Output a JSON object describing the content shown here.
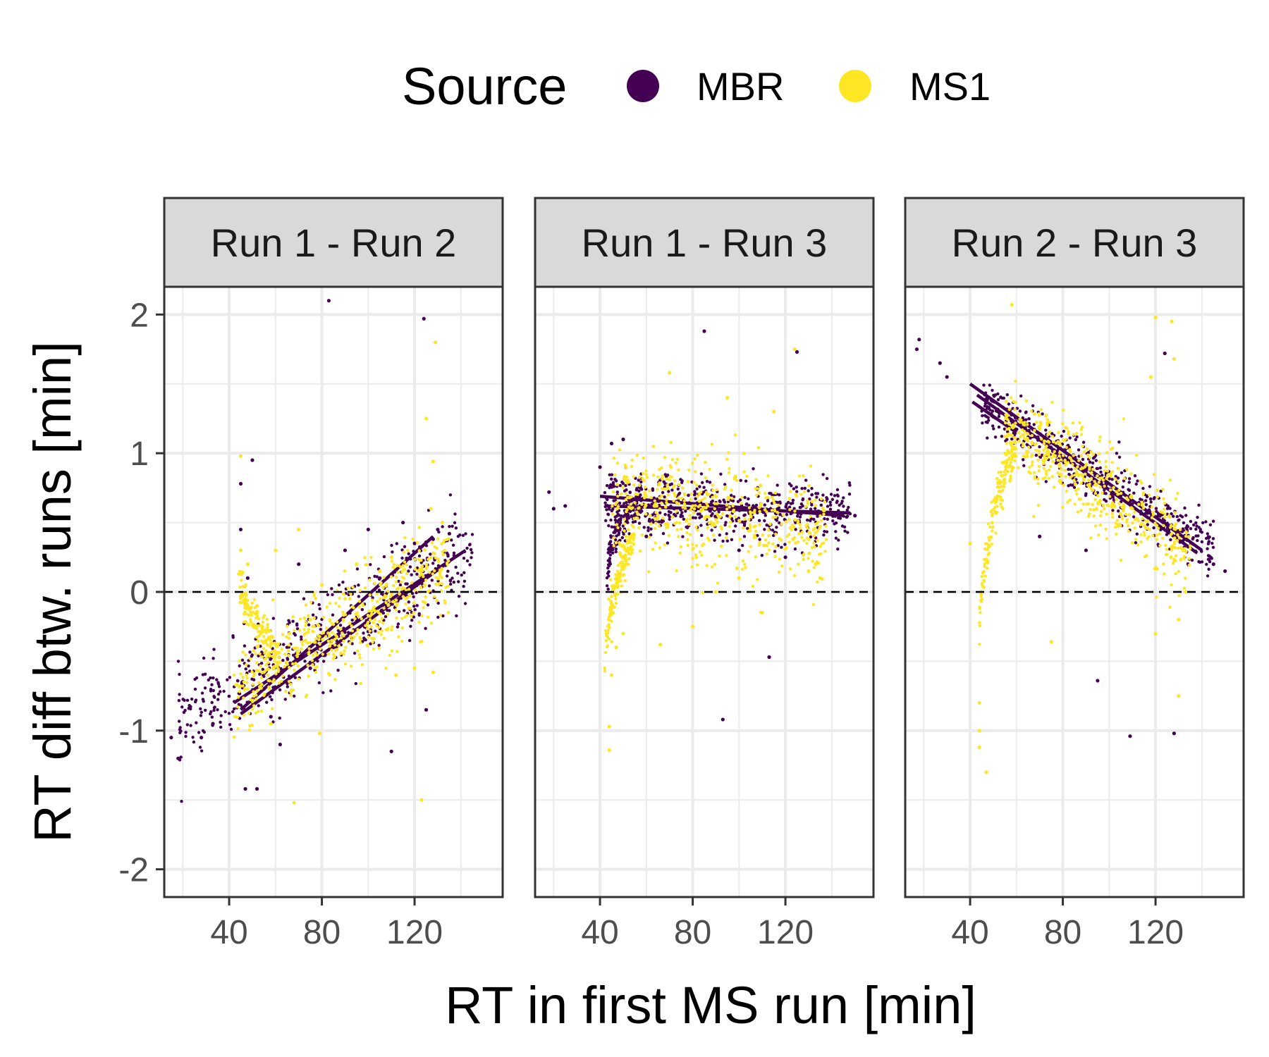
{
  "legend": {
    "title": "Source",
    "items": [
      {
        "label": "MBR",
        "color": "#440154"
      },
      {
        "label": "MS1",
        "color": "#FDE725"
      }
    ]
  },
  "axes": {
    "x_title": "RT in first MS run [min]",
    "y_title": "RT diff btw. runs [min]"
  },
  "chart_data": [
    {
      "type": "scatter",
      "panel": "Run 1 - Run 2",
      "xlim": [
        12,
        158
      ],
      "ylim": [
        -2.2,
        2.2
      ],
      "x_ticks": [
        40,
        80,
        120
      ],
      "x_tick_labels": [
        "40",
        "80",
        "120"
      ],
      "y_ticks": [
        -2,
        -1,
        0,
        1,
        2
      ],
      "y_tick_labels": [
        "-2",
        "-1",
        "0",
        "1",
        "2"
      ],
      "reference_line_y": 0,
      "grid": true,
      "series": [
        {
          "name": "MBR",
          "color": "#440154",
          "points": [
            [
              15,
              -1.05
            ],
            [
              18,
              -1.2
            ],
            [
              28,
              -1.05
            ],
            [
              33,
              -0.95
            ],
            [
              45,
              0.45
            ],
            [
              45,
              0.78
            ],
            [
              50,
              0.95
            ],
            [
              83,
              2.1
            ],
            [
              124,
              1.97
            ],
            [
              47,
              -1.42
            ],
            [
              52,
              -1.42
            ],
            [
              110,
              -1.15
            ],
            [
              125,
              -0.85
            ],
            [
              58,
              -0.9
            ],
            [
              62,
              -1.1
            ],
            [
              70,
              0.2
            ],
            [
              90,
              0.3
            ],
            [
              100,
              0.45
            ],
            [
              115,
              0.5
            ],
            [
              130,
              0.45
            ],
            [
              128,
              0.38
            ],
            [
              105,
              0.1
            ],
            [
              95,
              -0.2
            ],
            [
              85,
              -0.4
            ],
            [
              75,
              -0.55
            ],
            [
              65,
              -0.65
            ],
            [
              55,
              -0.7
            ],
            [
              48,
              0.1
            ],
            [
              120,
              0.35
            ],
            [
              135,
              0.42
            ]
          ],
          "fit_lines": [
            [
              [
                42,
                -0.8
              ],
              [
                142,
                0.3
              ]
            ],
            [
              [
                45,
                -0.88
              ],
              [
                135,
                0.22
              ]
            ],
            [
              [
                45,
                -0.85
              ],
              [
                128,
                0.4
              ]
            ]
          ],
          "band": {
            "x": [
              18,
              145
            ],
            "center_start": -0.95,
            "center_end": 0.32,
            "spread": 0.3
          }
        },
        {
          "name": "MS1",
          "color": "#FDE725",
          "points": [
            [
              45,
              0.98
            ],
            [
              129,
              1.8
            ],
            [
              125,
              1.25
            ],
            [
              128,
              0.94
            ],
            [
              68,
              -1.52
            ],
            [
              123,
              -1.5
            ],
            [
              45,
              0.3
            ],
            [
              48,
              0.2
            ],
            [
              52,
              -0.1
            ],
            [
              60,
              0.3
            ],
            [
              70,
              0.45
            ],
            [
              80,
              0.05
            ],
            [
              90,
              -0.05
            ],
            [
              110,
              0.25
            ],
            [
              127,
              0.6
            ],
            [
              132,
              0.5
            ],
            [
              112,
              -0.6
            ],
            [
              120,
              -0.55
            ],
            [
              128,
              -0.58
            ],
            [
              79,
              -1.02
            ],
            [
              58,
              -0.95
            ],
            [
              66,
              -0.3
            ],
            [
              75,
              -0.2
            ],
            [
              95,
              0.2
            ],
            [
              105,
              0.15
            ]
          ],
          "band": {
            "x": [
              42,
              135
            ],
            "center_start": -0.75,
            "center_end": 0.2,
            "spread": 0.3
          },
          "arm": {
            "x": [
              44,
              62
            ],
            "y_start": 0.2,
            "y_end": -0.5
          }
        }
      ]
    },
    {
      "type": "scatter",
      "panel": "Run 1 - Run 3",
      "xlim": [
        12,
        158
      ],
      "ylim": [
        -2.2,
        2.2
      ],
      "x_ticks": [
        40,
        80,
        120
      ],
      "x_tick_labels": [
        "40",
        "80",
        "120"
      ],
      "y_ticks": [
        -2,
        -1,
        0,
        1,
        2
      ],
      "y_tick_labels": [
        "-2",
        "-1",
        "0",
        "1",
        "2"
      ],
      "reference_line_y": 0,
      "grid": true,
      "series": [
        {
          "name": "MBR",
          "color": "#440154",
          "points": [
            [
              18,
              0.72
            ],
            [
              20,
              0.6
            ],
            [
              25,
              0.62
            ],
            [
              85,
              1.88
            ],
            [
              125,
              1.73
            ],
            [
              93,
              -0.92
            ],
            [
              113,
              -0.47
            ],
            [
              150,
              0.55
            ],
            [
              145,
              0.57
            ],
            [
              40,
              0.9
            ],
            [
              45,
              1.07
            ],
            [
              50,
              1.1
            ],
            [
              60,
              0.4
            ],
            [
              100,
              0.3
            ],
            [
              120,
              0.25
            ]
          ],
          "fit_lines": [
            [
              [
                40,
                0.69
              ],
              [
                145,
                0.55
              ]
            ],
            [
              [
                42,
                0.62
              ],
              [
                148,
                0.57
              ]
            ]
          ],
          "band": {
            "x": [
              42,
              148
            ],
            "center_start": 0.65,
            "center_end": 0.55,
            "spread": 0.2
          },
          "arm": {
            "x": [
              43,
              58
            ],
            "y_start": 0.1,
            "y_end": 0.7
          }
        },
        {
          "name": "MS1",
          "color": "#FDE725",
          "points": [
            [
              124,
              1.75
            ],
            [
              44,
              -0.97
            ],
            [
              44,
              -1.14
            ],
            [
              45,
              -0.6
            ],
            [
              47,
              -0.4
            ],
            [
              50,
              -0.3
            ],
            [
              66,
              -0.38
            ],
            [
              80,
              -0.25
            ],
            [
              90,
              0
            ],
            [
              100,
              0.1
            ],
            [
              110,
              -0.15
            ],
            [
              130,
              0.15
            ],
            [
              133,
              0.2
            ],
            [
              135,
              0.1
            ],
            [
              70,
              1.58
            ],
            [
              95,
              1.4
            ],
            [
              115,
              1.3
            ]
          ],
          "band": {
            "x": [
              45,
              138
            ],
            "center_start": 0.7,
            "center_end": 0.4,
            "spread": 0.35
          },
          "arm": {
            "x": [
              42,
              55
            ],
            "y_start": -0.6,
            "y_end": 0.45
          }
        }
      ]
    },
    {
      "type": "scatter",
      "panel": "Run 2 - Run 3",
      "xlim": [
        12,
        158
      ],
      "ylim": [
        -2.2,
        2.2
      ],
      "x_ticks": [
        40,
        80,
        120
      ],
      "x_tick_labels": [
        "40",
        "80",
        "120"
      ],
      "y_ticks": [
        -2,
        -1,
        0,
        1,
        2
      ],
      "y_tick_labels": [
        "-2",
        "-1",
        "0",
        "1",
        "2"
      ],
      "reference_line_y": 0,
      "grid": true,
      "series": [
        {
          "name": "MBR",
          "color": "#440154",
          "points": [
            [
              18,
              1.82
            ],
            [
              17,
              1.75
            ],
            [
              27,
              1.65
            ],
            [
              30,
              1.55
            ],
            [
              109,
              -1.04
            ],
            [
              128,
              -1.02
            ],
            [
              95,
              -0.64
            ],
            [
              124,
              1.72
            ],
            [
              150,
              0.15
            ],
            [
              145,
              0.2
            ],
            [
              70,
              0.4
            ],
            [
              90,
              0.3
            ]
          ],
          "fit_lines": [
            [
              [
                40,
                1.5
              ],
              [
                140,
                0.3
              ]
            ],
            [
              [
                43,
                1.42
              ],
              [
                138,
                0.28
              ]
            ],
            [
              [
                41,
                1.37
              ],
              [
                60,
                1.15
              ]
            ]
          ],
          "band": {
            "x": [
              45,
              145
            ],
            "center_start": 1.35,
            "center_end": 0.3,
            "spread": 0.18
          }
        },
        {
          "name": "MS1",
          "color": "#FDE725",
          "points": [
            [
              58,
              2.07
            ],
            [
              127,
              1.95
            ],
            [
              120,
              1.98
            ],
            [
              128,
              1.68
            ],
            [
              118,
              1.55
            ],
            [
              44,
              -1.0
            ],
            [
              44,
              -1.12
            ],
            [
              47,
              -1.3
            ],
            [
              44,
              -0.8
            ],
            [
              40,
              0.35
            ],
            [
              75,
              -0.36
            ],
            [
              120,
              -0.3
            ],
            [
              130,
              -0.75
            ],
            [
              130,
              -0.2
            ],
            [
              133,
              0.0
            ]
          ],
          "band": {
            "x": [
              55,
              135
            ],
            "center_start": 1.2,
            "center_end": 0.3,
            "spread": 0.3
          },
          "arm": {
            "x": [
              44,
              60
            ],
            "y_start": -0.35,
            "y_end": 1.1
          }
        }
      ]
    }
  ]
}
